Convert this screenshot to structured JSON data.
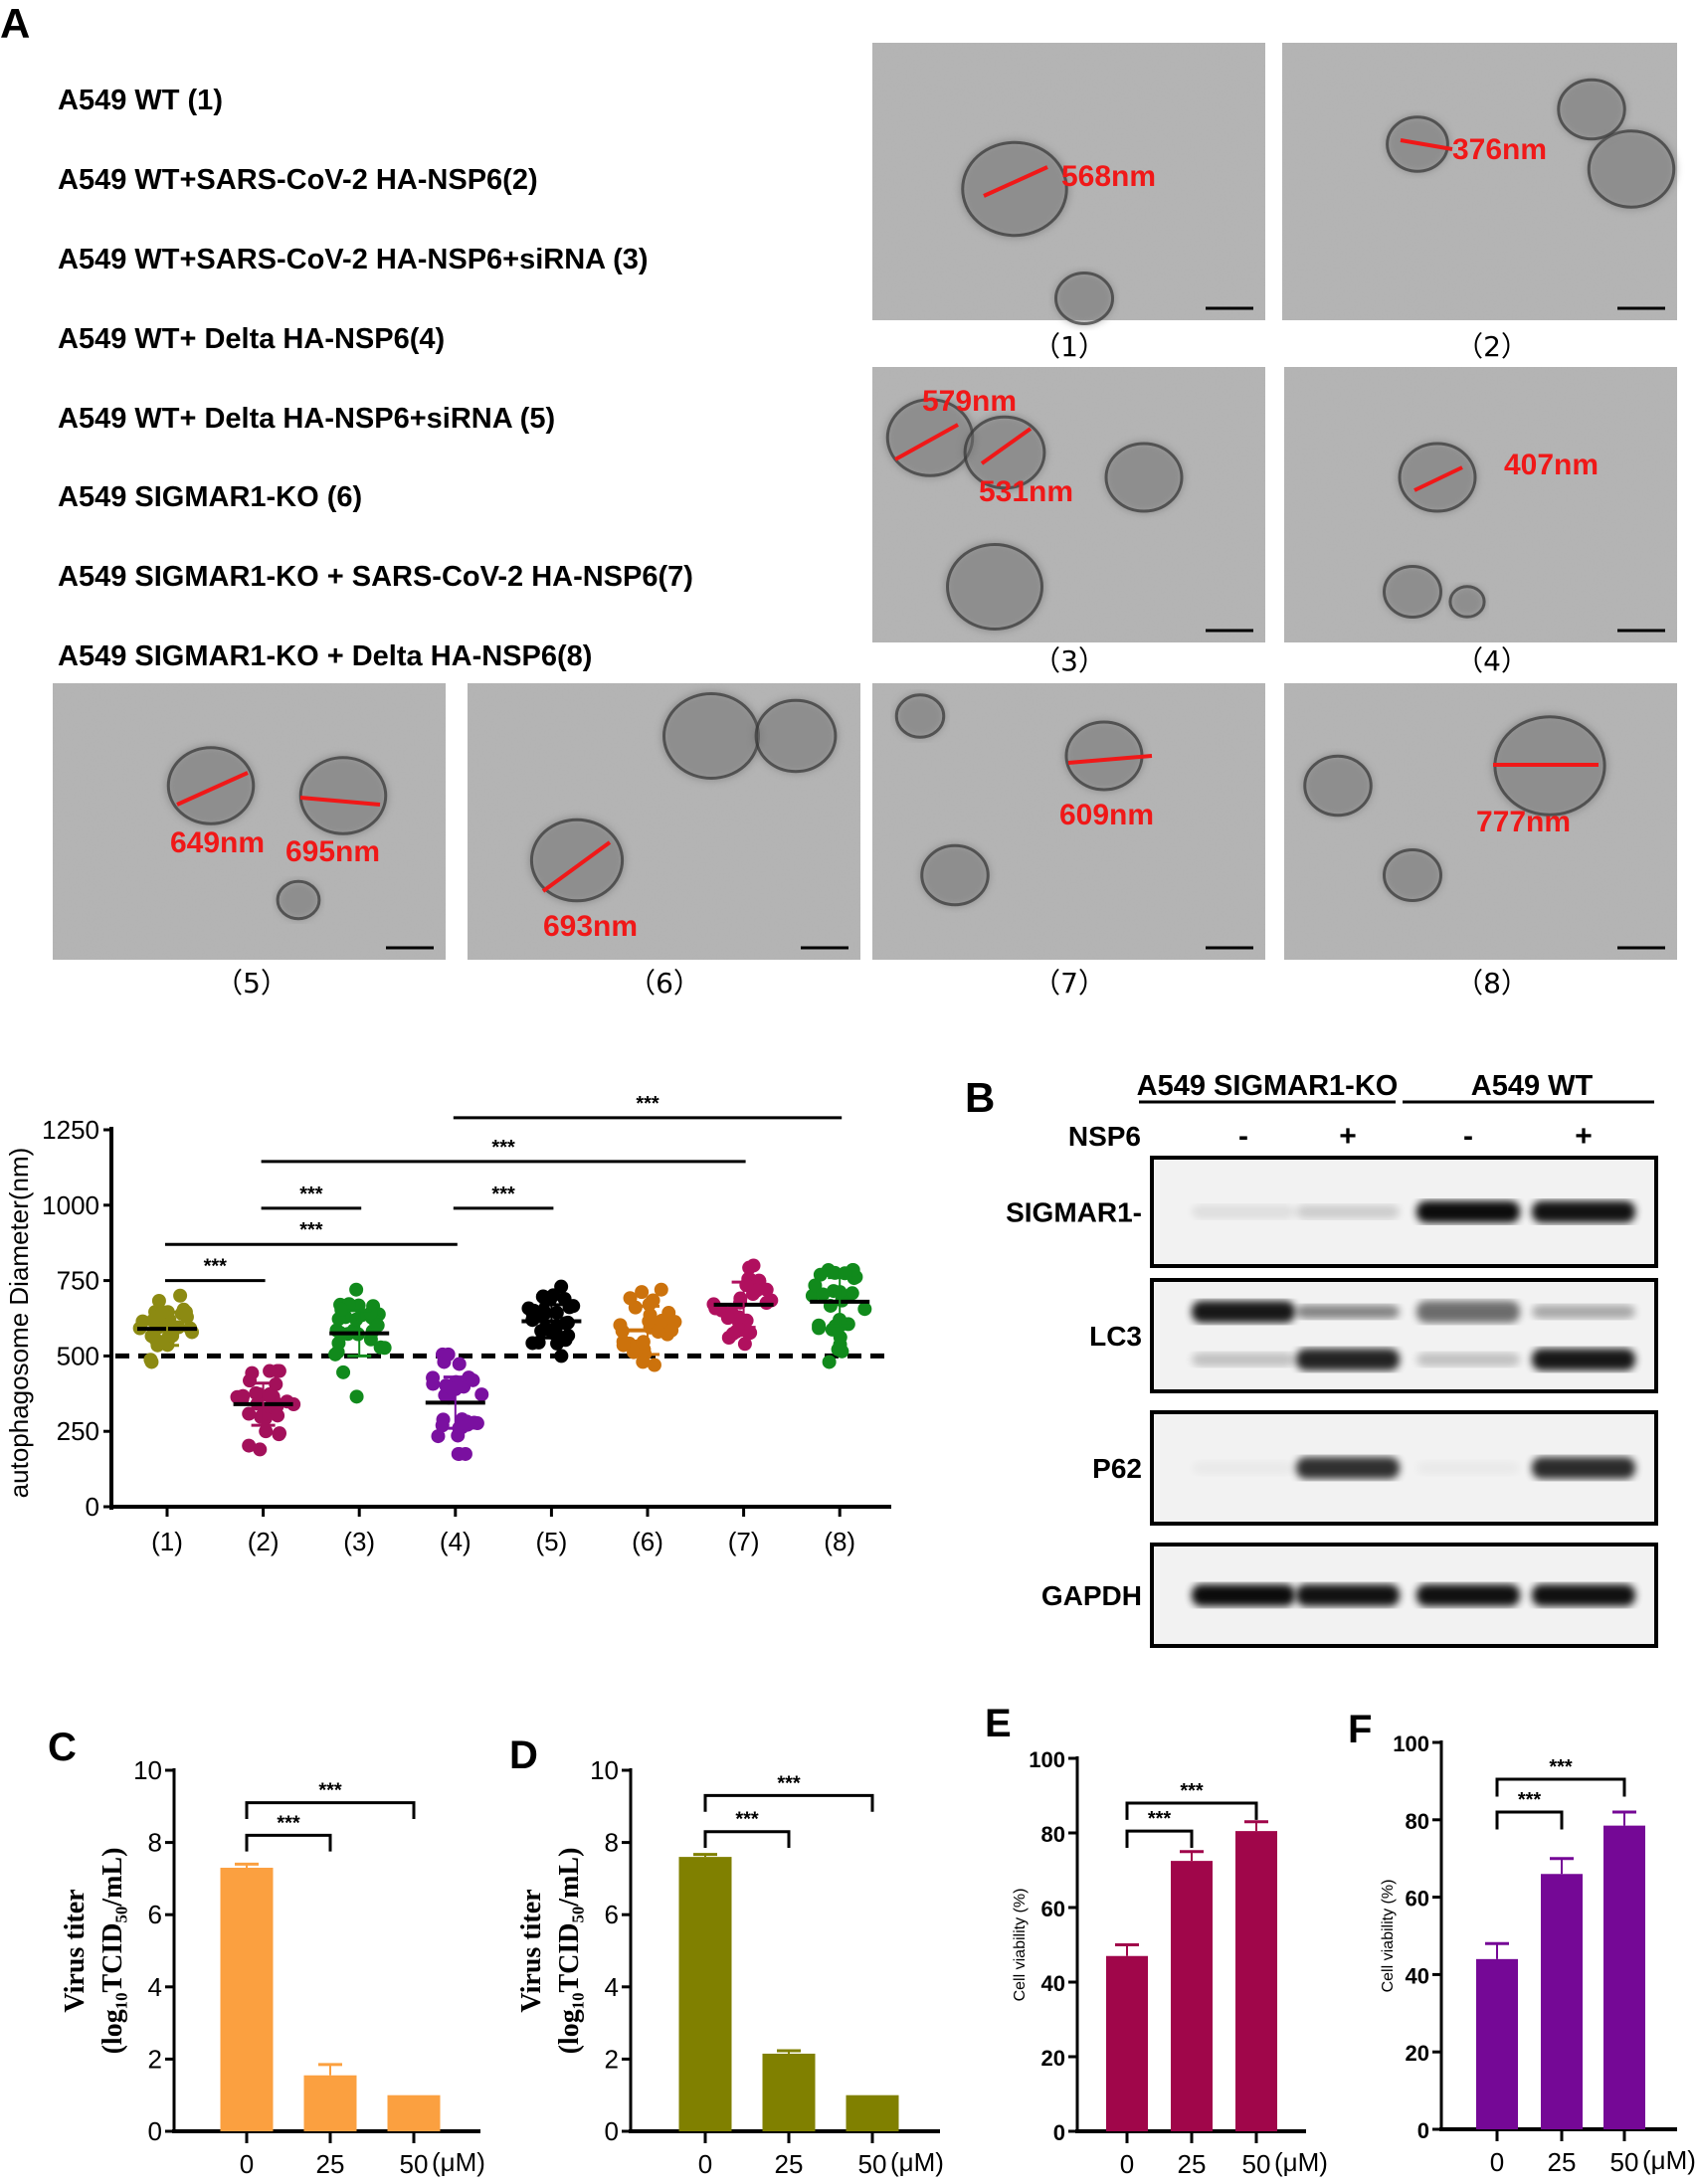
{
  "panel_labels": {
    "a": "A",
    "b": "B",
    "c": "C",
    "d": "D",
    "e": "E",
    "f": "F"
  },
  "panel_a": {
    "legend": [
      "A549 WT (1)",
      "A549 WT+SARS-CoV-2 HA-NSP6(2)",
      "A549 WT+SARS-CoV-2 HA-NSP6+siRNA (3)",
      "A549 WT+ Delta HA-NSP6(4)",
      "A549 WT+ Delta HA-NSP6+siRNA (5)",
      "A549 SIGMAR1-KO (6)",
      "A549 SIGMAR1-KO + SARS-CoV-2 HA-NSP6(7)",
      "A549 SIGMAR1-KO + Delta HA-NSP6(8)"
    ],
    "images": [
      {
        "caption": "（1）",
        "measurements": [
          "568nm"
        ]
      },
      {
        "caption": "（2）",
        "measurements": [
          "376nm"
        ]
      },
      {
        "caption": "（3）",
        "measurements": [
          "579nm",
          "531nm"
        ]
      },
      {
        "caption": "（4）",
        "measurements": [
          "407nm"
        ]
      },
      {
        "caption": "（5）",
        "measurements": [
          "649nm",
          "695nm"
        ]
      },
      {
        "caption": "（6）",
        "measurements": [
          "693nm"
        ]
      },
      {
        "caption": "（7）",
        "measurements": [
          "609nm"
        ]
      },
      {
        "caption": "（8）",
        "measurements": [
          "777nm"
        ]
      }
    ],
    "measurement_color": "#f01818"
  },
  "panel_b": {
    "groups": [
      "A549 SIGMAR1-KO",
      "A549 WT"
    ],
    "treatment_label": "NSP6",
    "lanes": [
      "-",
      "+",
      "-",
      "+"
    ],
    "blots": [
      {
        "label": "SIGMAR1-",
        "bands": [
          [
            0.08,
            0.15,
            0.95,
            0.92
          ]
        ]
      },
      {
        "label": "LC3",
        "bands": [
          [
            0.9,
            0.45,
            0.55,
            0.3
          ],
          [
            0.2,
            0.85,
            0.2,
            0.9
          ]
        ]
      },
      {
        "label": "P62",
        "bands": [
          [
            0.03,
            0.8,
            0.03,
            0.82
          ]
        ]
      },
      {
        "label": "GAPDH",
        "bands": [
          [
            0.95,
            0.92,
            0.93,
            0.93
          ]
        ]
      }
    ]
  },
  "chart_data": [
    {
      "id": "autophagosome",
      "type": "scatter",
      "ylabel": "autophagosome Diameter(nm)",
      "categories": [
        "(1)",
        "(2)",
        "(3)",
        "(4)",
        "(5)",
        "(6)",
        "(7)",
        "(8)"
      ],
      "ylim": [
        0,
        1250
      ],
      "yticks": [
        "0",
        "250",
        "500",
        "750",
        "1000",
        "1250"
      ],
      "reference_line": 500,
      "groups": [
        {
          "mean": 590,
          "sd": 55,
          "min": 480,
          "max": 700,
          "color": "#8c8a12"
        },
        {
          "mean": 340,
          "sd": 70,
          "min": 190,
          "max": 450,
          "color": "#a3105a"
        },
        {
          "mean": 575,
          "sd": 75,
          "min": 365,
          "max": 720,
          "color": "#118a1c"
        },
        {
          "mean": 345,
          "sd": 85,
          "min": 175,
          "max": 505,
          "color": "#7a10a0"
        },
        {
          "mean": 615,
          "sd": 55,
          "min": 500,
          "max": 730,
          "color": "#000000"
        },
        {
          "mean": 585,
          "sd": 80,
          "min": 470,
          "max": 720,
          "color": "#cc720c"
        },
        {
          "mean": 670,
          "sd": 75,
          "min": 540,
          "max": 800,
          "color": "#b0105e"
        },
        {
          "mean": 680,
          "sd": 80,
          "min": 480,
          "max": 785,
          "color": "#118a1c"
        }
      ],
      "significance": [
        {
          "from": 1,
          "to": 2,
          "level": 750,
          "label": "***"
        },
        {
          "from": 1,
          "to": 4,
          "level": 870,
          "label": "***"
        },
        {
          "from": 2,
          "to": 3,
          "level": 990,
          "label": "***"
        },
        {
          "from": 4,
          "to": 5,
          "level": 990,
          "label": "***"
        },
        {
          "from": 2,
          "to": 7,
          "level": 1145,
          "label": "***"
        },
        {
          "from": 4,
          "to": 8,
          "level": 1290,
          "label": "***"
        }
      ]
    },
    {
      "id": "C",
      "type": "bar",
      "ylabel_line1": "Virus titer",
      "ylabel_line2": "(log₁₀TCID₅₀/mL)",
      "categories": [
        "0",
        "25",
        "50"
      ],
      "unit": "(μM)",
      "values": [
        7.3,
        1.55,
        1.0
      ],
      "errors": [
        0.1,
        0.3,
        0
      ],
      "ylim": [
        0,
        10
      ],
      "yticks": [
        "0",
        "2",
        "4",
        "6",
        "8",
        "10"
      ],
      "color": "#fba040",
      "significance": [
        {
          "from": 1,
          "to": 2,
          "level": 8.2,
          "label": "***"
        },
        {
          "from": 1,
          "to": 3,
          "level": 9.1,
          "label": "***"
        }
      ]
    },
    {
      "id": "D",
      "type": "bar",
      "ylabel_line1": "Virus titer",
      "ylabel_line2": "(log₁₀TCID₅₀/mL)",
      "categories": [
        "0",
        "25",
        "50"
      ],
      "unit": "(μM)",
      "values": [
        7.6,
        2.15,
        1.0
      ],
      "errors": [
        0.07,
        0.08,
        0
      ],
      "ylim": [
        0,
        10
      ],
      "yticks": [
        "0",
        "2",
        "4",
        "6",
        "8",
        "10"
      ],
      "color": "#808000",
      "significance": [
        {
          "from": 1,
          "to": 2,
          "level": 8.3,
          "label": "***"
        },
        {
          "from": 1,
          "to": 3,
          "level": 9.3,
          "label": "***"
        }
      ]
    },
    {
      "id": "E",
      "type": "bar",
      "ylabel": "Cell viability (%)",
      "categories": [
        "0",
        "25",
        "50"
      ],
      "unit": "(μM)",
      "values": [
        47,
        72.5,
        80.5
      ],
      "errors": [
        3,
        2.5,
        2.5
      ],
      "ylim": [
        0,
        100
      ],
      "yticks": [
        "0",
        "20",
        "40",
        "60",
        "80",
        "100"
      ],
      "color": "#a0064a",
      "significance": [
        {
          "from": 1,
          "to": 2,
          "level": 80.5,
          "label": "***"
        },
        {
          "from": 1,
          "to": 3,
          "level": 88,
          "label": "***"
        }
      ]
    },
    {
      "id": "F",
      "type": "bar",
      "ylabel": "Cell viability (%)",
      "categories": [
        "0",
        "25",
        "50"
      ],
      "unit": "(μM)",
      "values": [
        44,
        66,
        78.5
      ],
      "errors": [
        4,
        4,
        3.5
      ],
      "ylim": [
        0,
        100
      ],
      "yticks": [
        "0",
        "20",
        "40",
        "60",
        "80",
        "100"
      ],
      "color": "#750896",
      "significance": [
        {
          "from": 1,
          "to": 2,
          "level": 82,
          "label": "***"
        },
        {
          "from": 1,
          "to": 3,
          "level": 90.5,
          "label": "***"
        }
      ]
    }
  ]
}
